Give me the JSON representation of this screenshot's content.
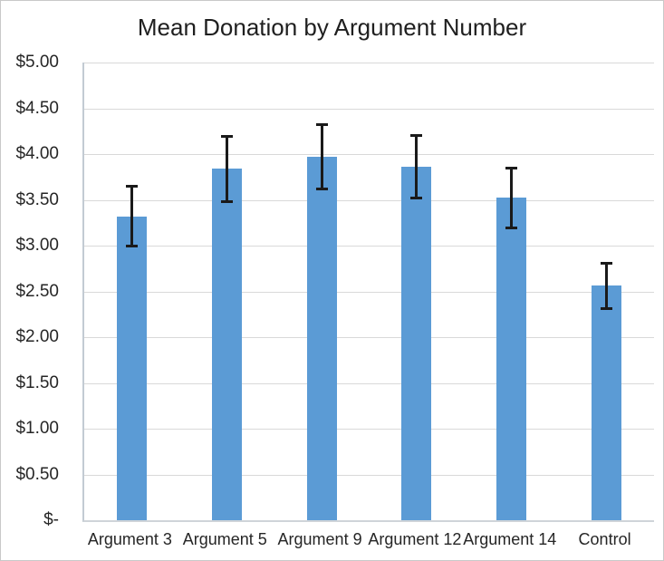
{
  "chart_data": {
    "type": "bar",
    "title": "Mean Donation by Argument Number",
    "categories": [
      "Argument 3",
      "Argument 5",
      "Argument 9",
      "Argument 12",
      "Argument 14",
      "Control"
    ],
    "values": [
      3.32,
      3.84,
      3.97,
      3.86,
      3.52,
      2.56
    ],
    "error_bars": [
      0.33,
      0.36,
      0.36,
      0.35,
      0.33,
      0.25
    ],
    "xlabel": "",
    "ylabel": "",
    "ylim": [
      0,
      5
    ],
    "ytick_step": 0.5,
    "ytick_labels": [
      "$-",
      "$0.50",
      "$1.00",
      "$1.50",
      "$2.00",
      "$2.50",
      "$3.00",
      "$3.50",
      "$4.00",
      "$4.50",
      "$5.00"
    ],
    "grid": true,
    "legend": false,
    "colors": {
      "bar": "#5b9bd5",
      "error_bar": "#1a1a1a",
      "gridline": "#d9d9d9",
      "axis_line": "#c3cbd3",
      "text": "#262626"
    }
  }
}
